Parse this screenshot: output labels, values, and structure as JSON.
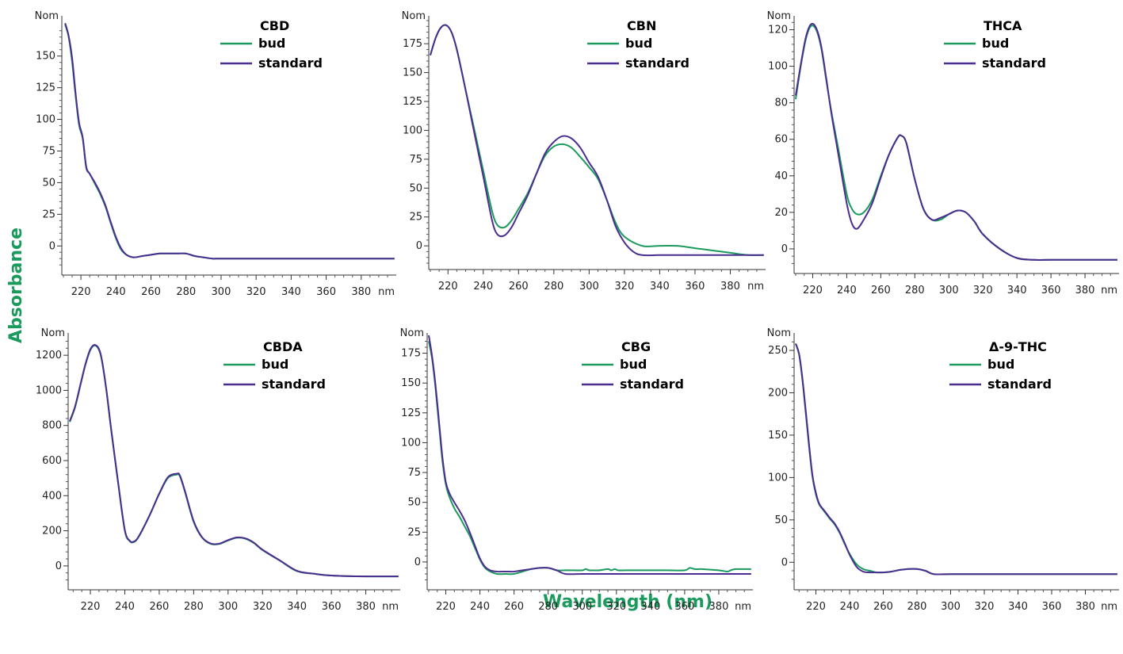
{
  "figure": {
    "ylabel": "Absorbance",
    "xlabel": "Wavelength (nm)",
    "accent_color": "#1a9a5c"
  },
  "chart_data": [
    {
      "type": "line",
      "title": "CBD",
      "xunit": "nm",
      "yunit": "Nom",
      "xlim": [
        210,
        400
      ],
      "ylim": [
        -18,
        178
      ],
      "xticks": [
        220,
        240,
        260,
        280,
        300,
        320,
        340,
        360,
        380
      ],
      "yticks": [
        0,
        25,
        50,
        75,
        100,
        125,
        150
      ],
      "series": [
        {
          "name": "bud",
          "color": "#1a9a5c",
          "x": [
            211,
            213,
            215,
            217,
            219,
            221,
            223,
            225,
            228,
            231,
            234,
            237,
            240,
            243,
            246,
            250,
            255,
            260,
            265,
            270,
            275,
            280,
            285,
            290,
            295,
            300,
            320,
            340,
            360,
            380,
            399
          ],
          "y": [
            175,
            165,
            145,
            118,
            95,
            85,
            62,
            57,
            49,
            41,
            31,
            18,
            6,
            -3,
            -7,
            -9,
            -8,
            -7,
            -6,
            -6,
            -6,
            -6,
            -8,
            -9,
            -10,
            -10,
            -10,
            -10,
            -10,
            -10,
            -10
          ]
        },
        {
          "name": "standard",
          "color": "#4b2d8f",
          "x": [
            211,
            213,
            215,
            217,
            219,
            221,
            223,
            225,
            228,
            231,
            234,
            237,
            240,
            243,
            246,
            250,
            255,
            260,
            265,
            270,
            275,
            280,
            285,
            290,
            295,
            300,
            320,
            340,
            360,
            380,
            399
          ],
          "y": [
            176,
            166,
            148,
            120,
            97,
            86,
            63,
            57,
            50,
            42,
            32,
            19,
            7,
            -2,
            -7,
            -9,
            -8,
            -7,
            -6,
            -6,
            -6,
            -6,
            -8,
            -9,
            -10,
            -10,
            -10,
            -10,
            -10,
            -10,
            -10
          ]
        }
      ]
    },
    {
      "type": "line",
      "title": "CBN",
      "xunit": "nm",
      "yunit": "Nom",
      "xlim": [
        210,
        400
      ],
      "ylim": [
        -15,
        195
      ],
      "xticks": [
        220,
        240,
        260,
        280,
        300,
        320,
        340,
        360,
        380
      ],
      "yticks": [
        0,
        25,
        50,
        75,
        100,
        125,
        150,
        175
      ],
      "series": [
        {
          "name": "bud",
          "color": "#1a9a5c",
          "x": [
            210,
            213,
            216,
            219,
            222,
            225,
            230,
            235,
            240,
            245,
            248,
            252,
            256,
            260,
            265,
            270,
            275,
            280,
            285,
            290,
            295,
            300,
            305,
            310,
            315,
            320,
            330,
            340,
            350,
            360,
            370,
            380,
            390,
            399
          ],
          "y": [
            165,
            180,
            189,
            191,
            185,
            170,
            135,
            100,
            65,
            30,
            18,
            16,
            22,
            32,
            45,
            62,
            78,
            86,
            88,
            85,
            77,
            68,
            58,
            40,
            20,
            8,
            0,
            0,
            0,
            -2,
            -4,
            -6,
            -8,
            -8
          ]
        },
        {
          "name": "standard",
          "color": "#4b2d8f",
          "x": [
            210,
            213,
            216,
            219,
            222,
            225,
            230,
            235,
            240,
            245,
            248,
            252,
            256,
            260,
            265,
            270,
            275,
            280,
            285,
            290,
            295,
            300,
            305,
            310,
            315,
            320,
            325,
            330,
            340,
            350,
            360,
            370,
            380,
            390,
            399
          ],
          "y": [
            165,
            180,
            189,
            191,
            185,
            170,
            135,
            97,
            60,
            22,
            10,
            9,
            16,
            28,
            43,
            62,
            80,
            90,
            95,
            93,
            85,
            72,
            60,
            40,
            17,
            3,
            -5,
            -8,
            -8,
            -8,
            -8,
            -8,
            -8,
            -8,
            -8
          ]
        }
      ]
    },
    {
      "type": "line",
      "title": "THCA",
      "xunit": "nm",
      "yunit": "Nom",
      "xlim": [
        210,
        400
      ],
      "ylim": [
        -10,
        125
      ],
      "xticks": [
        220,
        240,
        260,
        280,
        300,
        320,
        340,
        360,
        380
      ],
      "yticks": [
        0,
        20,
        40,
        60,
        80,
        100,
        120
      ],
      "series": [
        {
          "name": "bud",
          "color": "#1a9a5c",
          "x": [
            210,
            213,
            216,
            219,
            222,
            225,
            228,
            231,
            235,
            240,
            243,
            246,
            250,
            255,
            260,
            265,
            270,
            272,
            275,
            280,
            285,
            290,
            295,
            300,
            305,
            310,
            315,
            320,
            330,
            340,
            350,
            360,
            380,
            399
          ],
          "y": [
            82,
            100,
            115,
            122,
            120,
            110,
            92,
            75,
            55,
            30,
            22,
            19,
            20,
            27,
            40,
            52,
            61,
            62,
            58,
            38,
            22,
            16,
            16,
            19,
            21,
            20,
            15,
            8,
            0,
            -5,
            -6,
            -6,
            -6,
            -6
          ]
        },
        {
          "name": "standard",
          "color": "#4b2d8f",
          "x": [
            210,
            213,
            216,
            219,
            222,
            225,
            228,
            231,
            235,
            240,
            243,
            246,
            250,
            255,
            260,
            265,
            270,
            272,
            275,
            280,
            285,
            290,
            295,
            300,
            305,
            310,
            315,
            320,
            330,
            340,
            350,
            360,
            380,
            399
          ],
          "y": [
            84,
            101,
            116,
            123,
            121,
            111,
            93,
            74,
            52,
            25,
            14,
            11,
            16,
            25,
            39,
            52,
            61,
            62,
            58,
            38,
            22,
            16,
            17,
            19,
            21,
            20,
            15,
            8,
            0,
            -5,
            -6,
            -6,
            -6,
            -6
          ]
        }
      ]
    },
    {
      "type": "line",
      "title": "CBDA",
      "xunit": "nm",
      "yunit": "Nom",
      "xlim": [
        208,
        400
      ],
      "ylim": [
        -100,
        1300
      ],
      "xticks": [
        220,
        240,
        260,
        280,
        300,
        320,
        340,
        360,
        380
      ],
      "yticks": [
        0,
        200,
        400,
        600,
        800,
        1000,
        1200
      ],
      "series": [
        {
          "name": "bud",
          "color": "#1a9a5c",
          "x": [
            208,
            211,
            214,
            217,
            220,
            223,
            226,
            229,
            232,
            236,
            240,
            243,
            245,
            247,
            250,
            255,
            260,
            265,
            270,
            272,
            275,
            280,
            285,
            290,
            295,
            300,
            305,
            310,
            315,
            320,
            330,
            340,
            350,
            360,
            380,
            399
          ],
          "y": [
            820,
            900,
            1020,
            1140,
            1230,
            1255,
            1200,
            1020,
            780,
            480,
            200,
            140,
            135,
            150,
            200,
            300,
            410,
            500,
            520,
            510,
            420,
            250,
            160,
            125,
            125,
            145,
            160,
            155,
            130,
            90,
            30,
            -30,
            -45,
            -55,
            -60,
            -60
          ]
        },
        {
          "name": "standard",
          "color": "#4b2d8f",
          "x": [
            208,
            211,
            214,
            217,
            220,
            223,
            226,
            229,
            232,
            236,
            240,
            243,
            245,
            247,
            250,
            255,
            260,
            265,
            270,
            272,
            275,
            280,
            285,
            290,
            295,
            300,
            305,
            310,
            315,
            320,
            330,
            340,
            350,
            360,
            380,
            399
          ],
          "y": [
            825,
            905,
            1025,
            1145,
            1235,
            1258,
            1205,
            1025,
            785,
            485,
            205,
            142,
            138,
            152,
            202,
            302,
            412,
            505,
            525,
            515,
            425,
            255,
            162,
            127,
            127,
            147,
            162,
            157,
            132,
            92,
            32,
            -28,
            -45,
            -55,
            -60,
            -60
          ]
        }
      ]
    },
    {
      "type": "line",
      "title": "CBG",
      "xunit": "nm",
      "yunit": "Nom",
      "xlim": [
        210,
        400
      ],
      "ylim": [
        -18,
        188
      ],
      "xticks": [
        220,
        240,
        260,
        280,
        300,
        320,
        340,
        360,
        380
      ],
      "yticks": [
        0,
        25,
        50,
        75,
        100,
        125,
        150,
        175
      ],
      "series": [
        {
          "name": "bud",
          "color": "#1a9a5c",
          "x": [
            210,
            212,
            214,
            216,
            218,
            220,
            222,
            225,
            228,
            231,
            234,
            237,
            240,
            243,
            246,
            250,
            255,
            260,
            265,
            270,
            275,
            280,
            285,
            290,
            295,
            300,
            302,
            304,
            306,
            310,
            315,
            317,
            319,
            321,
            325,
            327,
            329,
            331,
            340,
            350,
            360,
            363,
            366,
            370,
            380,
            385,
            387,
            390,
            399
          ],
          "y": [
            185,
            170,
            145,
            115,
            85,
            65,
            55,
            45,
            38,
            30,
            22,
            12,
            2,
            -5,
            -8,
            -10,
            -10,
            -10,
            -8,
            -6,
            -5,
            -5,
            -7,
            -7,
            -7,
            -7,
            -6,
            -7,
            -7,
            -7,
            -6,
            -7,
            -6,
            -7,
            -7,
            -7,
            -7,
            -7,
            -7,
            -7,
            -7,
            -5,
            -6,
            -6,
            -7,
            -8,
            -7,
            -6,
            -6
          ]
        },
        {
          "name": "standard",
          "color": "#4b2d8f",
          "x": [
            210,
            212,
            214,
            216,
            218,
            220,
            222,
            225,
            228,
            231,
            234,
            237,
            240,
            243,
            246,
            250,
            255,
            260,
            265,
            270,
            275,
            280,
            285,
            290,
            300,
            320,
            340,
            360,
            380,
            399
          ],
          "y": [
            190,
            172,
            148,
            118,
            88,
            67,
            58,
            50,
            43,
            35,
            25,
            14,
            3,
            -4,
            -7,
            -8,
            -8,
            -8,
            -7,
            -6,
            -5,
            -5,
            -7,
            -10,
            -10,
            -10,
            -10,
            -10,
            -10,
            -10
          ]
        }
      ]
    },
    {
      "type": "line",
      "title": "Δ-9-THC",
      "xunit": "nm",
      "yunit": "Nom",
      "xlim": [
        208,
        400
      ],
      "ylim": [
        -25,
        265
      ],
      "xticks": [
        220,
        240,
        260,
        280,
        300,
        320,
        340,
        360,
        380
      ],
      "yticks": [
        0,
        50,
        100,
        150,
        200,
        250
      ],
      "series": [
        {
          "name": "bud",
          "color": "#1a9a5c",
          "x": [
            208,
            210,
            212,
            214,
            216,
            218,
            220,
            222,
            225,
            228,
            231,
            234,
            237,
            240,
            244,
            248,
            252,
            256,
            260,
            265,
            270,
            275,
            280,
            285,
            290,
            300,
            320,
            340,
            360,
            380,
            399
          ],
          "y": [
            258,
            245,
            215,
            175,
            135,
            100,
            80,
            68,
            60,
            52,
            45,
            35,
            22,
            10,
            -2,
            -8,
            -10,
            -12,
            -12,
            -11,
            -9,
            -8,
            -8,
            -10,
            -14,
            -14,
            -14,
            -14,
            -14,
            -14,
            -14
          ]
        },
        {
          "name": "standard",
          "color": "#4b2d8f",
          "x": [
            208,
            210,
            212,
            214,
            216,
            218,
            220,
            222,
            225,
            228,
            231,
            234,
            237,
            240,
            244,
            248,
            252,
            256,
            260,
            265,
            270,
            275,
            280,
            285,
            290,
            300,
            320,
            340,
            360,
            380,
            399
          ],
          "y": [
            258,
            246,
            217,
            178,
            138,
            102,
            82,
            69,
            61,
            53,
            46,
            36,
            23,
            9,
            -5,
            -11,
            -12,
            -12,
            -12,
            -11,
            -9,
            -8,
            -8,
            -10,
            -14,
            -14,
            -14,
            -14,
            -14,
            -14,
            -14
          ]
        }
      ]
    }
  ]
}
